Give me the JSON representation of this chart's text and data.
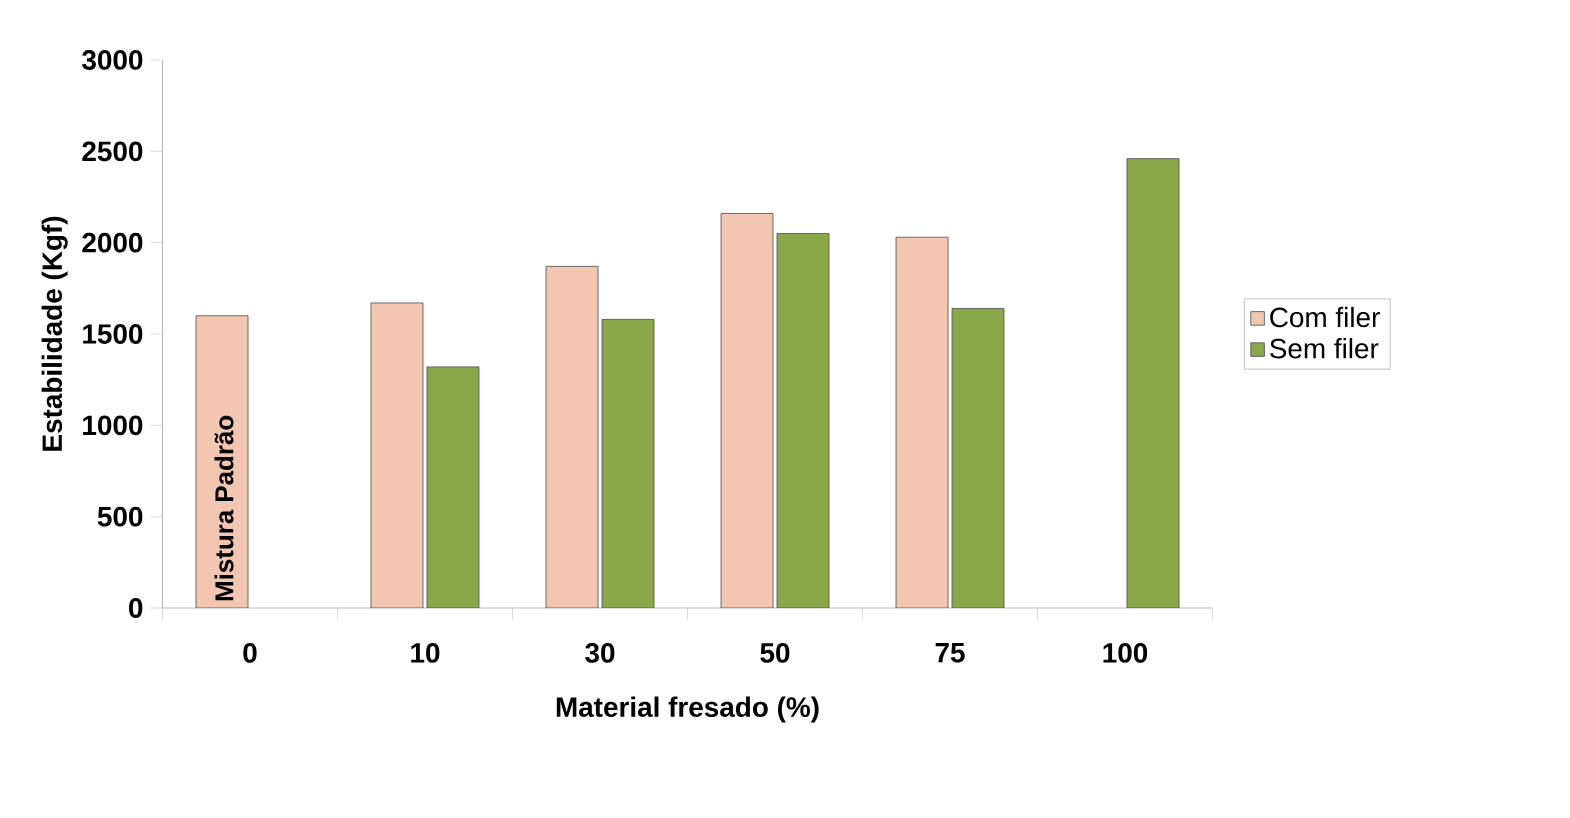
{
  "chart_data": {
    "type": "bar",
    "xlabel": "Material fresado (%)",
    "ylabel": "Estabilidade (Kgf)",
    "categories": [
      "0",
      "10",
      "30",
      "50",
      "75",
      "100"
    ],
    "series": [
      {
        "name": "Com filer",
        "color": "#f2c6b0",
        "values": [
          1600,
          1670,
          1870,
          2160,
          2030,
          null
        ]
      },
      {
        "name": "Sem filer",
        "color": "#8aa84a",
        "values": [
          null,
          1320,
          1580,
          2050,
          1640,
          2460
        ]
      }
    ],
    "ylim": [
      0,
      3000
    ],
    "yticks": [
      0,
      500,
      1000,
      1500,
      2000,
      2500,
      3000
    ],
    "legend": "right",
    "annotations": [
      "Mistura Padrão"
    ]
  }
}
